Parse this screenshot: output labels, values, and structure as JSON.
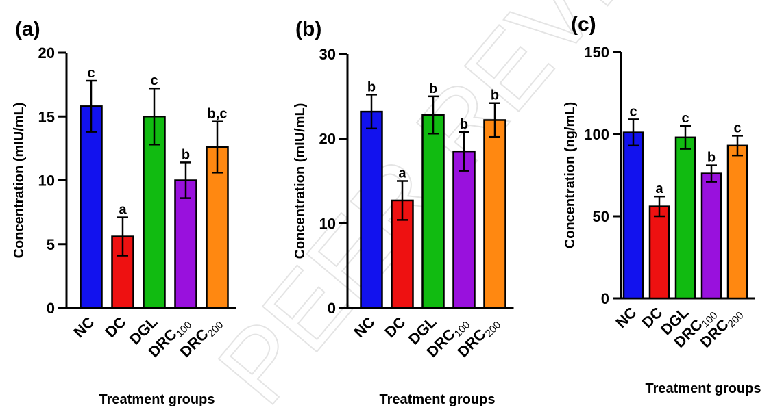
{
  "watermark": "PEER REVIEW",
  "chart_data": [
    {
      "type": "bar",
      "panel_label": "(a)",
      "categories": [
        "NC",
        "DC",
        "DGL",
        "DRC100",
        "DRC200"
      ],
      "category_parts": [
        [
          "NC",
          ""
        ],
        [
          "DC",
          ""
        ],
        [
          "DGL",
          ""
        ],
        [
          "DRC",
          "100"
        ],
        [
          "DRC",
          "200"
        ]
      ],
      "values": [
        15.8,
        5.6,
        15.0,
        10.0,
        12.6
      ],
      "errors": [
        2.0,
        1.5,
        2.2,
        1.4,
        2.0
      ],
      "significance": [
        "c",
        "a",
        "c",
        "b",
        "b,c"
      ],
      "colors": [
        "#1212ee",
        "#ee1111",
        "#11bb11",
        "#9911dd",
        "#ff8811"
      ],
      "ylabel": "Concentration (mIU/mL)",
      "xlabel": "Treatment groups",
      "ylim": [
        0,
        20
      ],
      "yticks": [
        0,
        5,
        10,
        15,
        20
      ]
    },
    {
      "type": "bar",
      "panel_label": "(b)",
      "categories": [
        "NC",
        "DC",
        "DGL",
        "DRC100",
        "DRC200"
      ],
      "category_parts": [
        [
          "NC",
          ""
        ],
        [
          "DC",
          ""
        ],
        [
          "DGL",
          ""
        ],
        [
          "DRC",
          "100"
        ],
        [
          "DRC",
          "200"
        ]
      ],
      "values": [
        23.2,
        12.7,
        22.8,
        18.5,
        22.2
      ],
      "errors": [
        2.0,
        2.3,
        2.2,
        2.3,
        2.0
      ],
      "significance": [
        "b",
        "a",
        "b",
        "b",
        "b"
      ],
      "colors": [
        "#1212ee",
        "#ee1111",
        "#11bb11",
        "#9911dd",
        "#ff8811"
      ],
      "ylabel": "Concentration (mIU/mL)",
      "xlabel": "Treatment groups",
      "ylim": [
        0,
        30
      ],
      "yticks": [
        0,
        10,
        20,
        30
      ]
    },
    {
      "type": "bar",
      "panel_label": "(c)",
      "categories": [
        "NC",
        "DC",
        "DGL",
        "DRC100",
        "DRC200"
      ],
      "category_parts": [
        [
          "NC",
          ""
        ],
        [
          "DC",
          ""
        ],
        [
          "DGL",
          ""
        ],
        [
          "DRC",
          "100"
        ],
        [
          "DRC",
          "200"
        ]
      ],
      "values": [
        101,
        56,
        98,
        76,
        93
      ],
      "errors": [
        8,
        6,
        7,
        5,
        6
      ],
      "significance": [
        "c",
        "a",
        "c",
        "b",
        "c"
      ],
      "colors": [
        "#1212ee",
        "#ee1111",
        "#11bb11",
        "#9911dd",
        "#ff8811"
      ],
      "ylabel": "Concentration (ng/mL)",
      "xlabel": "Treatment groups",
      "ylim": [
        0,
        150
      ],
      "yticks": [
        0,
        50,
        100,
        150
      ]
    }
  ]
}
